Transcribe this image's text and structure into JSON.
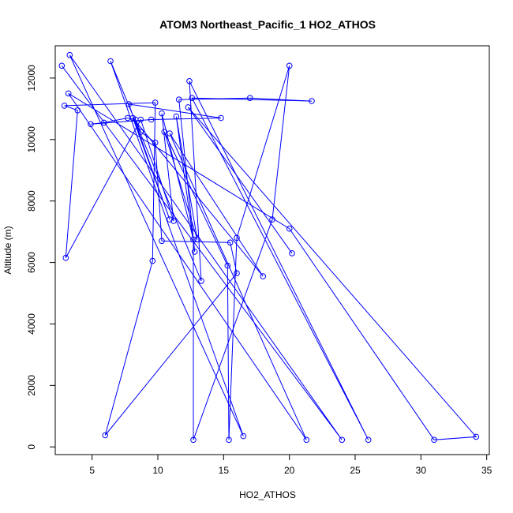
{
  "chart_data": {
    "type": "line",
    "title": "ATOM3 Northeast_Pacific_1 HO2_ATHOS",
    "xlabel": "HO2_ATHOS",
    "ylabel": "Altitude (m)",
    "xlim": [
      2.2,
      35.2
    ],
    "ylim": [
      -250,
      13050
    ],
    "xticks": [
      5,
      10,
      15,
      20,
      25,
      30,
      35
    ],
    "yticks": [
      0,
      2000,
      4000,
      6000,
      8000,
      10000,
      12000
    ],
    "series_color": "#0000ff",
    "marker": "open-circle",
    "series": [
      {
        "points": [
          [
            2.7,
            12400
          ],
          [
            24.0,
            230
          ],
          [
            3.3,
            12750
          ],
          [
            16.5,
            350
          ],
          [
            6.4,
            12550
          ],
          [
            13.3,
            5400
          ],
          [
            12.4,
            11900
          ],
          [
            26.0,
            230
          ],
          [
            12.6,
            11350
          ],
          [
            21.7,
            11250
          ],
          [
            17.0,
            11350
          ],
          [
            11.6,
            11300
          ],
          [
            12.8,
            6350
          ],
          [
            11.4,
            10750
          ],
          [
            13.0,
            6750
          ],
          [
            10.5,
            10250
          ],
          [
            15.3,
            5900
          ],
          [
            15.4,
            230
          ],
          [
            16.0,
            6800
          ],
          [
            20.0,
            12400
          ],
          [
            18.7,
            7400
          ],
          [
            12.7,
            230
          ],
          [
            12.7,
            6750
          ],
          [
            10.3,
            10850
          ],
          [
            11.2,
            7350
          ],
          [
            8.7,
            10650
          ],
          [
            3.0,
            6150
          ],
          [
            3.9,
            10950
          ],
          [
            2.9,
            11100
          ],
          [
            9.8,
            11200
          ],
          [
            9.6,
            6050
          ],
          [
            6.0,
            380
          ],
          [
            16.0,
            5650
          ],
          [
            15.5,
            6650
          ],
          [
            10.3,
            6700
          ],
          [
            9.8,
            9900
          ],
          [
            8.7,
            10250
          ],
          [
            8.3,
            10650
          ],
          [
            7.7,
            10700
          ],
          [
            5.9,
            10550
          ],
          [
            4.9,
            10500
          ],
          [
            9.5,
            10650
          ],
          [
            14.8,
            10700
          ],
          [
            7.8,
            11150
          ],
          [
            10.9,
            7400
          ],
          [
            8.1,
            10700
          ],
          [
            18.0,
            5550
          ],
          [
            10.9,
            10200
          ],
          [
            21.3,
            230
          ],
          [
            3.2,
            11500
          ],
          [
            20.0,
            7100
          ],
          [
            31.0,
            230
          ],
          [
            34.2,
            330
          ],
          [
            12.3,
            11050
          ],
          [
            20.2,
            6300
          ]
        ]
      }
    ]
  }
}
